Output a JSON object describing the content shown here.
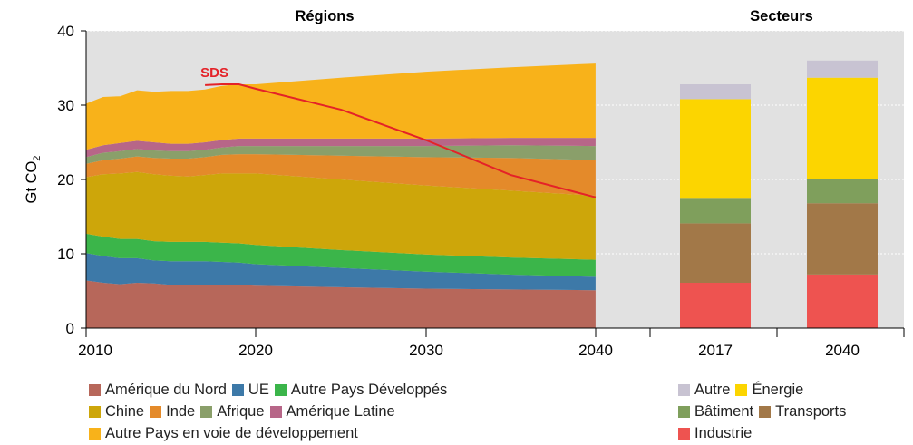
{
  "chart_data": {
    "type": "area",
    "title_left": "Régions",
    "title_right": "Secteurs",
    "ylabel": "Gt CO2",
    "ylim": [
      0,
      40
    ],
    "yticks": [
      0,
      10,
      20,
      30,
      40
    ],
    "x_ticks": [
      "2010",
      "2020",
      "2030",
      "2040"
    ],
    "grid": true,
    "colors": {
      "amerique_nord": "#b7675a",
      "ue": "#3d79a8",
      "autres_dev": "#3bb54a",
      "chine": "#cda60a",
      "inde": "#e48a2a",
      "afrique": "#8a9f6a",
      "amerique_latine": "#b76688",
      "autres_pvd": "#f8b21a",
      "sds": "#e42228",
      "autre": "#c8c3d2",
      "energie": "#fcd500",
      "batiment": "#7f9f5c",
      "transports": "#a27848",
      "industrie": "#ee5350"
    },
    "x": [
      2010,
      2011,
      2012,
      2013,
      2014,
      2015,
      2016,
      2017,
      2018,
      2019,
      2020,
      2025,
      2030,
      2035,
      2040
    ],
    "series": [
      {
        "key": "amerique_nord",
        "name": "Amérique du Nord",
        "values": [
          6.4,
          6.1,
          5.9,
          6.1,
          6.0,
          5.8,
          5.8,
          5.8,
          5.8,
          5.8,
          5.7,
          5.5,
          5.3,
          5.2,
          5.1
        ]
      },
      {
        "key": "ue",
        "name": "UE",
        "values": [
          3.7,
          3.6,
          3.5,
          3.3,
          3.1,
          3.2,
          3.2,
          3.2,
          3.1,
          3.0,
          2.9,
          2.6,
          2.3,
          2.0,
          1.8
        ]
      },
      {
        "key": "autres_dev",
        "name": "Autre Pays Développés",
        "values": [
          2.6,
          2.6,
          2.6,
          2.6,
          2.6,
          2.6,
          2.6,
          2.6,
          2.6,
          2.6,
          2.6,
          2.4,
          2.3,
          2.3,
          2.3
        ]
      },
      {
        "key": "chine",
        "name": "Chine",
        "values": [
          7.6,
          8.4,
          8.8,
          9.0,
          9.0,
          8.9,
          8.8,
          9.0,
          9.3,
          9.4,
          9.6,
          9.5,
          9.3,
          9.0,
          8.6
        ]
      },
      {
        "key": "inde",
        "name": "Inde",
        "values": [
          1.8,
          1.9,
          2.0,
          2.1,
          2.2,
          2.3,
          2.4,
          2.4,
          2.5,
          2.6,
          2.6,
          3.2,
          3.8,
          4.4,
          4.8
        ]
      },
      {
        "key": "afrique",
        "name": "Afrique",
        "values": [
          0.9,
          1.0,
          1.0,
          1.0,
          1.0,
          1.0,
          1.0,
          1.0,
          1.0,
          1.1,
          1.1,
          1.3,
          1.5,
          1.7,
          1.9
        ]
      },
      {
        "key": "amerique_latine",
        "name": "Amérique Latine",
        "values": [
          1.0,
          1.0,
          1.1,
          1.1,
          1.1,
          1.0,
          1.0,
          1.0,
          1.0,
          1.0,
          1.0,
          1.0,
          1.0,
          1.0,
          1.1
        ]
      },
      {
        "key": "autres_pvd",
        "name": "Autre Pays en voie de développement",
        "values": [
          6.2,
          6.5,
          6.3,
          6.8,
          6.8,
          7.1,
          7.1,
          7.1,
          7.3,
          7.3,
          7.3,
          8.2,
          9.0,
          9.5,
          10.0
        ]
      }
    ],
    "sds": {
      "name": "SDS",
      "x": [
        2017,
        2018,
        2019,
        2020,
        2025,
        2030,
        2035,
        2040
      ],
      "values": [
        32.7,
        32.8,
        32.8,
        32.2,
        29.4,
        25.3,
        20.6,
        17.6
      ]
    },
    "bars": {
      "categories": [
        "2017",
        "2040"
      ],
      "series": [
        {
          "key": "industrie",
          "name": "Industrie",
          "values": [
            6.1,
            7.2
          ]
        },
        {
          "key": "transports",
          "name": "Transports",
          "values": [
            8.0,
            9.6
          ]
        },
        {
          "key": "batiment",
          "name": "Bâtiment",
          "values": [
            3.3,
            3.2
          ]
        },
        {
          "key": "energie",
          "name": "Énergie",
          "values": [
            13.4,
            13.7
          ]
        },
        {
          "key": "autre",
          "name": "Autre",
          "values": [
            2.0,
            2.3
          ]
        }
      ]
    }
  },
  "legend_left": [
    [
      {
        "key": "amerique_nord",
        "label": "Amérique du Nord"
      },
      {
        "key": "ue",
        "label": "UE"
      },
      {
        "key": "autres_dev",
        "label": "Autre Pays Développés"
      }
    ],
    [
      {
        "key": "chine",
        "label": "Chine"
      },
      {
        "key": "inde",
        "label": "Inde"
      },
      {
        "key": "afrique",
        "label": "Afrique"
      },
      {
        "key": "amerique_latine",
        "label": "Amérique Latine"
      }
    ],
    [
      {
        "key": "autres_pvd",
        "label": "Autre Pays en voie de développement"
      }
    ]
  ],
  "legend_right": [
    [
      {
        "key": "autre",
        "label": "Autre"
      },
      {
        "key": "energie",
        "label": "Énergie"
      }
    ],
    [
      {
        "key": "batiment",
        "label": "Bâtiment"
      },
      {
        "key": "transports",
        "label": "Transports"
      }
    ],
    [
      {
        "key": "industrie",
        "label": "Industrie"
      }
    ]
  ]
}
